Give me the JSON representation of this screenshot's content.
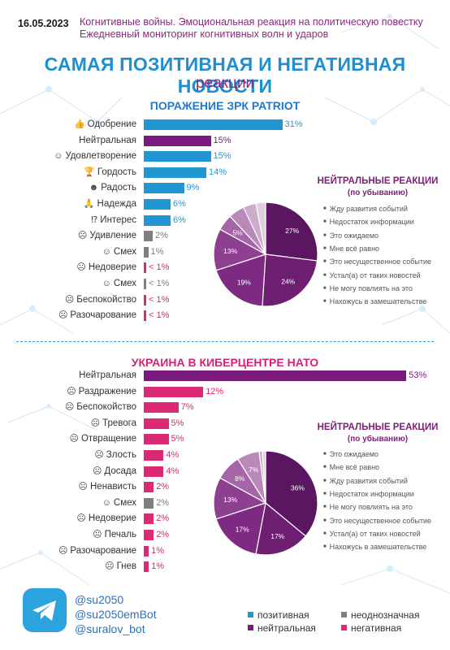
{
  "header": {
    "date": "16.05.2023",
    "line1": "Когнитивные войны. Эмоциональная реакция на политическую повестку",
    "line2": "Ежедневный мониторинг когнитивных волн и ударов"
  },
  "title": "САМАЯ ПОЗИТИВНАЯ И НЕГАТИВНАЯ НОВОСТИ",
  "subtitle": "реакции",
  "colors": {
    "positive": "#2196d3",
    "neutral": "#7b1a7d",
    "ambiguous": "#7f7f7f",
    "negative": "#d92a73"
  },
  "chart_data": [
    {
      "type": "bar",
      "title": "ПОРАЖЕНИЕ ЗРК PATRIOT",
      "categories": [
        "Одобрение",
        "Нейтральная",
        "Удовлетворение",
        "Гордость",
        "Радость",
        "Надежда",
        "Интерес",
        "Удивление",
        "Смех",
        "Недоверие",
        "Смех",
        "Беспокойство",
        "Разочарование"
      ],
      "values": [
        31,
        15,
        15,
        14,
        9,
        6,
        6,
        2,
        1,
        0.5,
        0.5,
        0.5,
        0.5
      ],
      "value_labels": [
        "31%",
        "15%",
        "15%",
        "14%",
        "9%",
        "6%",
        "6%",
        "2%",
        "1%",
        "< 1%",
        "< 1%",
        "< 1%",
        "< 1%"
      ],
      "kinds": [
        "positive",
        "neutral",
        "positive",
        "positive",
        "positive",
        "positive",
        "positive",
        "ambiguous",
        "ambiguous",
        "negative",
        "ambiguous",
        "negative",
        "negative"
      ],
      "icons": [
        "thumbs-up-icon",
        "",
        "smile-icon",
        "trophy-icon",
        "grin-icon",
        "hope-icon",
        "interest-icon",
        "surprise-icon",
        "laugh-icon",
        "doubt-icon",
        "laugh-icon",
        "worry-icon",
        "disappointed-icon"
      ]
    },
    {
      "type": "pie",
      "title": "НЕЙТРАЛЬНЫЕ РЕАКЦИИ",
      "subtitle": "(по убыванию)",
      "labels": [
        "Жду развития событий",
        "Недостаток информации",
        "Это ожидаемо",
        "Мне всё равно",
        "Это несущественное событие",
        "Устал(а) от таких новостей",
        "Не могу повлиять на это",
        "Нахожусь в замешательстве"
      ],
      "values": [
        27,
        24,
        19,
        13,
        5,
        5,
        4,
        3
      ],
      "slice_labels": [
        "27%",
        "24%",
        "19%",
        "13%",
        "5%",
        "",
        "",
        ""
      ],
      "colors": [
        "#5a1660",
        "#6e1f72",
        "#7e2a82",
        "#8d3f90",
        "#a565a6",
        "#b989b8",
        "#cbaccb",
        "#ddd0dd"
      ]
    },
    {
      "type": "bar",
      "title": "УКРАИНА В КИБЕРЦЕНТРЕ НАТО",
      "categories": [
        "Нейтральная",
        "Раздражение",
        "Беспокойство",
        "Тревога",
        "Отвращение",
        "Злость",
        "Досада",
        "Ненависть",
        "Смех",
        "Недоверие",
        "Печаль",
        "Разочарование",
        "Гнев"
      ],
      "values": [
        53,
        12,
        7,
        5,
        5,
        4,
        4,
        2,
        2,
        2,
        2,
        1,
        1
      ],
      "value_labels": [
        "53%",
        "12%",
        "7%",
        "5%",
        "5%",
        "4%",
        "4%",
        "2%",
        "2%",
        "2%",
        "2%",
        "1%",
        "1%"
      ],
      "kinds": [
        "neutral",
        "negative",
        "negative",
        "negative",
        "negative",
        "negative",
        "negative",
        "negative",
        "ambiguous",
        "negative",
        "negative",
        "negative",
        "negative"
      ],
      "icons": [
        "",
        "irritation-icon",
        "worry-icon",
        "anxiety-icon",
        "disgust-icon",
        "anger-icon",
        "annoyance-icon",
        "hate-icon",
        "laugh-icon",
        "doubt-icon",
        "sad-icon",
        "disappointed-icon",
        "rage-icon"
      ]
    },
    {
      "type": "pie",
      "title": "НЕЙТРАЛЬНЫЕ РЕАКЦИИ",
      "subtitle": "(по убыванию)",
      "labels": [
        "Это ожидаемо",
        "Мне всё равно",
        "Жду развития событий",
        "Недостаток информации",
        "Не могу повлиять на это",
        "Это несущественное событие",
        "Устал(а) от таких новостей",
        "Нахожусь в замешательстве"
      ],
      "values": [
        36,
        17,
        17,
        13,
        8,
        7,
        1,
        1
      ],
      "slice_labels": [
        "36%",
        "17%",
        "17%",
        "13%",
        "8%",
        "7%",
        "",
        ""
      ],
      "colors": [
        "#5a1660",
        "#6e1f72",
        "#7e2a82",
        "#8d3f90",
        "#a565a6",
        "#b989b8",
        "#cbaccb",
        "#ddd0dd"
      ]
    }
  ],
  "footer": {
    "handles": [
      "@su2050",
      "@su2050emBot",
      "@suralov_bot"
    ],
    "legend": [
      {
        "label": "позитивная",
        "kind": "positive"
      },
      {
        "label": "неоднозначная",
        "kind": "ambiguous"
      },
      {
        "label": "нейтральная",
        "kind": "neutral"
      },
      {
        "label": "негативная",
        "kind": "negative"
      }
    ]
  }
}
